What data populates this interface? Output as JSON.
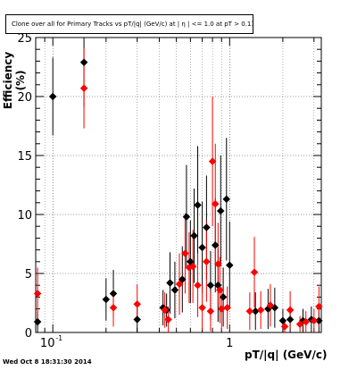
{
  "chart_data": {
    "type": "scatter",
    "title": "Clone over all for Primary Tracks vs pT/|q| (GeV/c) at |  η | <= 1.0 at pT > 0.11",
    "xlabel": "pT/|q| (GeV/c)",
    "ylabel": "Efficiency (%)",
    "xscale": "log",
    "xlim": [
      0.08,
      3.3
    ],
    "ylim": [
      0,
      25
    ],
    "y_ticks": [
      "0",
      "5",
      "10",
      "15",
      "20",
      "25"
    ],
    "x_ticks": [
      "10",
      "1"
    ],
    "x_tick_exponent": "-1",
    "grid": true,
    "legend": "none",
    "series": [
      {
        "color": "#000000",
        "marker": "diamond",
        "points": [
          {
            "x": 0.082,
            "y": 0.9,
            "err": 0.9
          },
          {
            "x": 0.1,
            "y": 20.0,
            "err": 3.3
          },
          {
            "x": 0.15,
            "y": 22.9,
            "err": 3.8
          },
          {
            "x": 0.2,
            "y": 2.8,
            "err": 1.8
          },
          {
            "x": 0.22,
            "y": 3.3,
            "err": 2.0
          },
          {
            "x": 0.3,
            "y": 1.1,
            "err": 1.1
          },
          {
            "x": 0.42,
            "y": 2.1,
            "err": 1.5
          },
          {
            "x": 0.44,
            "y": 1.9,
            "err": 1.4
          },
          {
            "x": 0.46,
            "y": 4.2,
            "err": 2.6
          },
          {
            "x": 0.49,
            "y": 3.6,
            "err": 2.4
          },
          {
            "x": 0.54,
            "y": 4.5,
            "err": 2.8
          },
          {
            "x": 0.57,
            "y": 9.8,
            "err": 4.4
          },
          {
            "x": 0.6,
            "y": 6.0,
            "err": 3.5
          },
          {
            "x": 0.63,
            "y": 8.2,
            "err": 4.0
          },
          {
            "x": 0.66,
            "y": 10.8,
            "err": 5.0
          },
          {
            "x": 0.7,
            "y": 7.2,
            "err": 3.9
          },
          {
            "x": 0.74,
            "y": 8.9,
            "err": 4.4
          },
          {
            "x": 0.78,
            "y": 4.0,
            "err": 2.9
          },
          {
            "x": 0.83,
            "y": 7.4,
            "err": 4.0
          },
          {
            "x": 0.86,
            "y": 4.0,
            "err": 3.1
          },
          {
            "x": 0.89,
            "y": 10.3,
            "err": 4.7
          },
          {
            "x": 0.92,
            "y": 3.0,
            "err": 2.5
          },
          {
            "x": 0.96,
            "y": 11.3,
            "err": 5.2
          },
          {
            "x": 1.0,
            "y": 5.7,
            "err": 3.7
          },
          {
            "x": 1.4,
            "y": 1.8,
            "err": 1.6
          },
          {
            "x": 1.65,
            "y": 2.0,
            "err": 1.7
          },
          {
            "x": 1.8,
            "y": 2.1,
            "err": 1.7
          },
          {
            "x": 2.0,
            "y": 1.0,
            "err": 1.0
          },
          {
            "x": 2.2,
            "y": 1.1,
            "err": 1.1
          },
          {
            "x": 2.6,
            "y": 1.0,
            "err": 1.0
          },
          {
            "x": 2.9,
            "y": 1.1,
            "err": 1.1
          },
          {
            "x": 3.2,
            "y": 1.0,
            "err": 1.0
          }
        ]
      },
      {
        "color": "#ff0000",
        "marker": "diamond",
        "points": [
          {
            "x": 0.082,
            "y": 3.3,
            "err": 2.2
          },
          {
            "x": 0.15,
            "y": 20.7,
            "err": 3.4
          },
          {
            "x": 0.22,
            "y": 2.1,
            "err": 1.6
          },
          {
            "x": 0.3,
            "y": 2.4,
            "err": 1.7
          },
          {
            "x": 0.43,
            "y": 1.9,
            "err": 1.5
          },
          {
            "x": 0.45,
            "y": 1.1,
            "err": 1.1
          },
          {
            "x": 0.52,
            "y": 4.1,
            "err": 2.6
          },
          {
            "x": 0.56,
            "y": 6.7,
            "err": 3.4
          },
          {
            "x": 0.59,
            "y": 5.5,
            "err": 3.0
          },
          {
            "x": 0.62,
            "y": 5.6,
            "err": 3.1
          },
          {
            "x": 0.66,
            "y": 4.0,
            "err": 2.7
          },
          {
            "x": 0.7,
            "y": 2.1,
            "err": 1.9
          },
          {
            "x": 0.74,
            "y": 6.0,
            "err": 3.4
          },
          {
            "x": 0.78,
            "y": 1.8,
            "err": 1.7
          },
          {
            "x": 0.8,
            "y": 14.5,
            "err": 5.5
          },
          {
            "x": 0.83,
            "y": 10.9,
            "err": 5.1
          },
          {
            "x": 0.86,
            "y": 5.8,
            "err": 3.5
          },
          {
            "x": 0.88,
            "y": 3.6,
            "err": 2.8
          },
          {
            "x": 0.9,
            "y": 2.0,
            "err": 1.8
          },
          {
            "x": 0.97,
            "y": 2.1,
            "err": 1.8
          },
          {
            "x": 1.3,
            "y": 1.8,
            "err": 1.6
          },
          {
            "x": 1.38,
            "y": 5.1,
            "err": 3.0
          },
          {
            "x": 1.5,
            "y": 1.9,
            "err": 1.6
          },
          {
            "x": 1.7,
            "y": 2.3,
            "err": 1.8
          },
          {
            "x": 2.05,
            "y": 0.5,
            "err": 0.5
          },
          {
            "x": 2.2,
            "y": 1.9,
            "err": 1.6
          },
          {
            "x": 2.5,
            "y": 0.7,
            "err": 0.7
          },
          {
            "x": 2.7,
            "y": 0.9,
            "err": 0.9
          },
          {
            "x": 3.0,
            "y": 1.0,
            "err": 1.0
          },
          {
            "x": 3.2,
            "y": 2.2,
            "err": 1.7
          }
        ]
      }
    ]
  },
  "footer": "Wed Oct  8 18:31:30 2014"
}
